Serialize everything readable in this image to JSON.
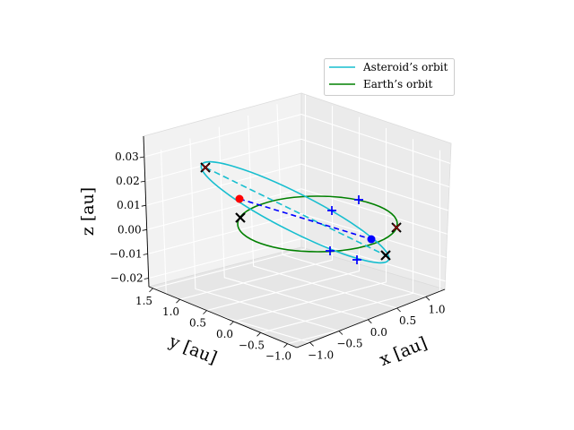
{
  "chart_data": {
    "type": "line3d",
    "projection": "3d-perspective",
    "xlabel": "x [au]",
    "ylabel": "y [au]",
    "zlabel": "z [au]",
    "xticks": [
      "−1.0",
      "−0.5",
      "0.0",
      "0.5",
      "1.0"
    ],
    "yticks": [
      "−1.0",
      "−0.5",
      "0.0",
      "0.5",
      "1.0",
      "1.5"
    ],
    "zticks": [
      "−0.02",
      "−0.01",
      "0.00",
      "0.01",
      "0.02",
      "0.03"
    ],
    "grid": true,
    "legend": {
      "placement": "top-right",
      "entries": [
        {
          "label": "Asteroid’s orbit",
          "color": "#17becf"
        },
        {
          "label": "Earth’s orbit",
          "color": "#008000"
        }
      ]
    },
    "series": [
      {
        "name": "Asteroid’s orbit",
        "color": "#17becf"
      },
      {
        "name": "Earth’s orbit",
        "color": "#008000"
      }
    ],
    "colors": {
      "asteroid": "#17becf",
      "earth": "#008000",
      "marker_red": "#ff0000",
      "marker_blue": "#0000ff",
      "marker_black": "#000000",
      "marker_darkred": "#8b0000"
    }
  }
}
